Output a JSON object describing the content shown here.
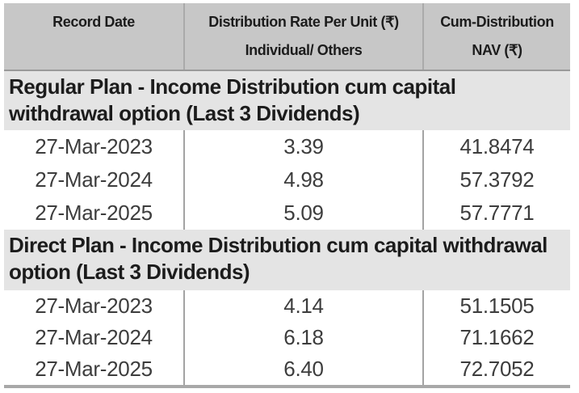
{
  "table": {
    "currency_symbol": "₹",
    "columns": [
      {
        "label": "Record Date"
      },
      {
        "line1": "Distribution Rate Per Unit (₹)",
        "line2": "Individual/ Others"
      },
      {
        "line1": "Cum-Distribution",
        "line2": "NAV (₹)"
      }
    ],
    "sections": [
      {
        "title": "Regular Plan - Income Distribution cum capital withdrawal option (Last 3 Dividends)",
        "rows": [
          {
            "record_date": "27-Mar-2023",
            "rate": "3.39",
            "nav": "41.8474"
          },
          {
            "record_date": "27-Mar-2024",
            "rate": "4.98",
            "nav": "57.3792"
          },
          {
            "record_date": "27-Mar-2025",
            "rate": "5.09",
            "nav": "57.7771"
          }
        ]
      },
      {
        "title": "Direct Plan - Income Distribution cum capital withdrawal option (Last 3 Dividends)",
        "rows": [
          {
            "record_date": "27-Mar-2023",
            "rate": "4.14",
            "nav": "51.1505"
          },
          {
            "record_date": "27-Mar-2024",
            "rate": "6.18",
            "nav": "71.1662"
          },
          {
            "record_date": "27-Mar-2025",
            "rate": "6.40",
            "nav": "72.7052"
          }
        ]
      }
    ],
    "colors": {
      "header_bg": "#c7c7c7",
      "section_bg": "#e4e4e4",
      "header_rule": "#9a9a9a",
      "header_sep": "#aaaaaa",
      "cell_sep": "#a3a3a3",
      "bottom_rule": "#a8a8a8",
      "text_dark": "#1c1c1c",
      "text_data": "#3d3d3d"
    }
  }
}
